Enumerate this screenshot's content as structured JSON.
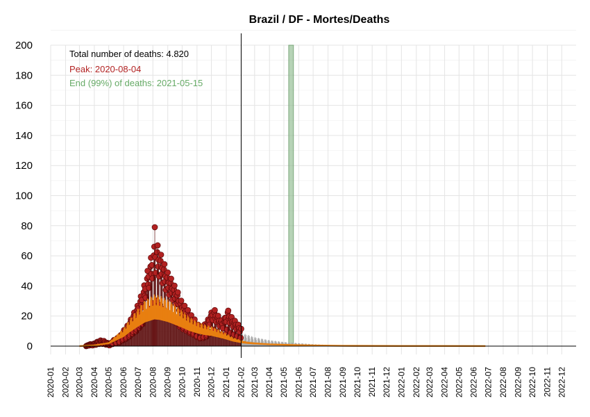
{
  "chart_data": {
    "type": "bar",
    "title": "Brazil / DF - Mortes/Deaths",
    "xlabel": "",
    "ylabel": "",
    "ylim": [
      0,
      200
    ],
    "yticks": [
      "0",
      "20",
      "40",
      "60",
      "80",
      "100",
      "120",
      "140",
      "160",
      "180",
      "200"
    ],
    "xlim": [
      "2020-01-01",
      "2022-12-31"
    ],
    "xticks": [
      "2020-01",
      "2020-02",
      "2020-03",
      "2020-04",
      "2020-05",
      "2020-06",
      "2020-07",
      "2020-08",
      "2020-09",
      "2020-10",
      "2020-11",
      "2020-12",
      "2021-01",
      "2021-02",
      "2021-03",
      "2021-04",
      "2021-05",
      "2021-06",
      "2021-07",
      "2021-08",
      "2021-09",
      "2021-10",
      "2021-11",
      "2021-12",
      "2022-01",
      "2022-02",
      "2022-03",
      "2022-04",
      "2022-05",
      "2022-06",
      "2022-07",
      "2022-08",
      "2022-09",
      "2022-10",
      "2022-11",
      "2022-12"
    ],
    "grid": true,
    "annotations": {
      "total": "Total number of deaths: 4.820",
      "peak": "Peak: 2020-08-04",
      "end": "End (99%) of deaths: 2021-05-15"
    },
    "colors": {
      "observed": "#b22222",
      "observed_edge": "#5a0a0a",
      "fit": "#e87f10",
      "projection": "#aaaaaa",
      "peak_band": "#d06a72",
      "end_band": "#8fbc8f",
      "end_text": "#66aa66",
      "peak_text": "#b22222"
    },
    "series_observed_weekly": [
      {
        "date": "2020-03-15",
        "value": 0
      },
      {
        "date": "2020-03-22",
        "value": 1
      },
      {
        "date": "2020-03-29",
        "value": 1
      },
      {
        "date": "2020-04-05",
        "value": 2
      },
      {
        "date": "2020-04-12",
        "value": 3
      },
      {
        "date": "2020-04-19",
        "value": 3
      },
      {
        "date": "2020-04-26",
        "value": 2
      },
      {
        "date": "2020-05-03",
        "value": 1
      },
      {
        "date": "2020-05-10",
        "value": 3
      },
      {
        "date": "2020-05-17",
        "value": 4
      },
      {
        "date": "2020-05-24",
        "value": 5
      },
      {
        "date": "2020-05-31",
        "value": 8
      },
      {
        "date": "2020-06-07",
        "value": 10
      },
      {
        "date": "2020-06-14",
        "value": 13
      },
      {
        "date": "2020-06-21",
        "value": 17
      },
      {
        "date": "2020-06-28",
        "value": 20
      },
      {
        "date": "2020-07-05",
        "value": 25
      },
      {
        "date": "2020-07-12",
        "value": 30
      },
      {
        "date": "2020-07-19",
        "value": 38
      },
      {
        "date": "2020-07-26",
        "value": 45
      },
      {
        "date": "2020-08-02",
        "value": 52
      },
      {
        "date": "2020-08-09",
        "value": 55
      },
      {
        "date": "2020-08-16",
        "value": 50
      },
      {
        "date": "2020-08-23",
        "value": 45
      },
      {
        "date": "2020-08-30",
        "value": 40
      },
      {
        "date": "2020-09-06",
        "value": 37
      },
      {
        "date": "2020-09-13",
        "value": 33
      },
      {
        "date": "2020-09-20",
        "value": 30
      },
      {
        "date": "2020-09-27",
        "value": 25
      },
      {
        "date": "2020-10-04",
        "value": 22
      },
      {
        "date": "2020-10-11",
        "value": 20
      },
      {
        "date": "2020-10-18",
        "value": 17
      },
      {
        "date": "2020-10-25",
        "value": 15
      },
      {
        "date": "2020-11-01",
        "value": 12
      },
      {
        "date": "2020-11-08",
        "value": 10
      },
      {
        "date": "2020-11-15",
        "value": 11
      },
      {
        "date": "2020-11-22",
        "value": 13
      },
      {
        "date": "2020-11-29",
        "value": 17
      },
      {
        "date": "2020-12-06",
        "value": 20
      },
      {
        "date": "2020-12-13",
        "value": 17
      },
      {
        "date": "2020-12-20",
        "value": 14
      },
      {
        "date": "2020-12-27",
        "value": 13
      },
      {
        "date": "2021-01-03",
        "value": 20
      },
      {
        "date": "2021-01-10",
        "value": 16
      },
      {
        "date": "2021-01-17",
        "value": 14
      },
      {
        "date": "2021-01-24",
        "value": 12
      },
      {
        "date": "2021-01-31",
        "value": 10
      }
    ],
    "observed_peak": {
      "date": "2020-08-05",
      "value": 79
    },
    "fit_curve": [
      {
        "date": "2020-03-01",
        "value": 0
      },
      {
        "date": "2020-04-01",
        "value": 0.5
      },
      {
        "date": "2020-05-01",
        "value": 2
      },
      {
        "date": "2020-06-01",
        "value": 9
      },
      {
        "date": "2020-06-15",
        "value": 14
      },
      {
        "date": "2020-07-01",
        "value": 19
      },
      {
        "date": "2020-07-15",
        "value": 23
      },
      {
        "date": "2020-08-04",
        "value": 26
      },
      {
        "date": "2020-08-15",
        "value": 25.5
      },
      {
        "date": "2020-09-01",
        "value": 23.5
      },
      {
        "date": "2020-09-15",
        "value": 21
      },
      {
        "date": "2020-10-01",
        "value": 18
      },
      {
        "date": "2020-10-15",
        "value": 15
      },
      {
        "date": "2020-11-01",
        "value": 12.5
      },
      {
        "date": "2020-11-15",
        "value": 11
      },
      {
        "date": "2020-12-01",
        "value": 10
      },
      {
        "date": "2020-12-15",
        "value": 8.5
      },
      {
        "date": "2021-01-01",
        "value": 6.5
      },
      {
        "date": "2021-01-15",
        "value": 4.5
      },
      {
        "date": "2021-02-01",
        "value": 3
      },
      {
        "date": "2021-02-15",
        "value": 2.2
      },
      {
        "date": "2021-03-01",
        "value": 1.8
      },
      {
        "date": "2021-04-01",
        "value": 1.2
      },
      {
        "date": "2021-05-01",
        "value": 0.9
      },
      {
        "date": "2021-06-01",
        "value": 0.6
      },
      {
        "date": "2021-07-01",
        "value": 0.4
      },
      {
        "date": "2021-09-01",
        "value": 0.2
      },
      {
        "date": "2022-01-01",
        "value": 0.1
      },
      {
        "date": "2022-06-25",
        "value": 0.05
      }
    ],
    "fit_band_weekly_amplitude": 0.45,
    "projection_envelope": [
      {
        "date": "2021-02-01",
        "value": 9
      },
      {
        "date": "2021-03-01",
        "value": 6
      },
      {
        "date": "2021-04-01",
        "value": 4
      },
      {
        "date": "2021-05-01",
        "value": 2.8
      },
      {
        "date": "2021-06-01",
        "value": 2
      },
      {
        "date": "2021-07-01",
        "value": 1.3
      },
      {
        "date": "2021-08-01",
        "value": 0.8
      },
      {
        "date": "2021-09-01",
        "value": 0.4
      },
      {
        "date": "2021-10-01",
        "value": 0.2
      }
    ],
    "last_data_date": "2021-02-01",
    "peak_band": {
      "start": "2020-07-31",
      "end": "2020-08-09",
      "value": 20
    },
    "end_band": {
      "start": "2021-05-11",
      "end": "2021-05-21",
      "value": 200
    }
  }
}
